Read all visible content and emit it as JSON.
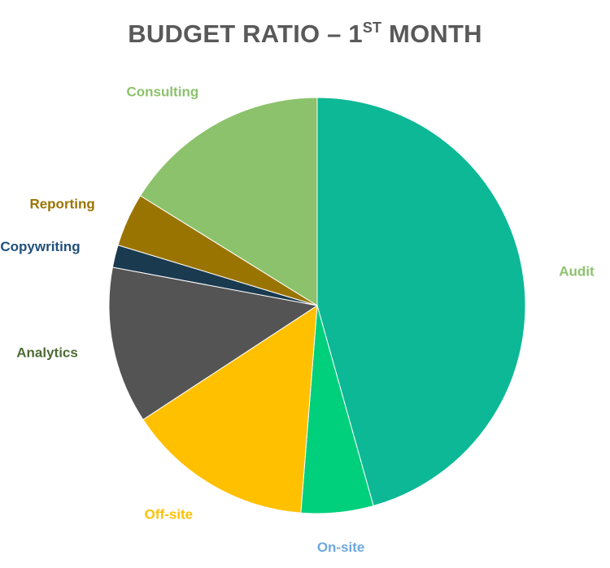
{
  "title": {
    "before": "BUDGET RATIO – 1",
    "superscript": "ST",
    "after": " MONTH"
  },
  "chart_data": {
    "type": "pie",
    "title": "BUDGET RATIO – 1ST MONTH",
    "start_angle_deg": 0,
    "direction": "clockwise",
    "legend": "none",
    "slices": [
      {
        "label": "Audit",
        "value": 47.2,
        "color": "#0DB896",
        "label_color": "#8DC26D"
      },
      {
        "label": "On-site",
        "value": 5.8,
        "color": "#00CF7B",
        "label_color": "#6FA8DC"
      },
      {
        "label": "Off-site",
        "value": 15.0,
        "color": "#FFC000",
        "label_color": "#FFC000"
      },
      {
        "label": "Analytics",
        "value": 12.6,
        "color": "#545454",
        "label_color": "#4E6B34"
      },
      {
        "label": "Copywriting",
        "value": 1.8,
        "color": "#1A3A4F",
        "label_color": "#22507A"
      },
      {
        "label": "Reporting",
        "value": 4.3,
        "color": "#9A7400",
        "label_color": "#9A7400"
      },
      {
        "label": "Consulting",
        "value": 16.7,
        "color": "#8CC26B",
        "label_color": "#8CC26B"
      }
    ]
  }
}
